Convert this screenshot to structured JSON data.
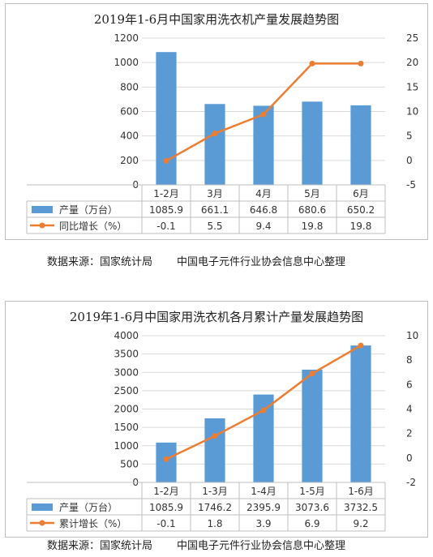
{
  "chart_data": [
    {
      "type": "bar",
      "title": "2019年1-6月中国家用洗衣机产量发展趋势图",
      "categories": [
        "1-2月",
        "3月",
        "4月",
        "5月",
        "6月"
      ],
      "series": [
        {
          "name": "产量（万台）",
          "type": "bar",
          "axis": "left",
          "values": [
            1085.9,
            661.1,
            646.8,
            680.6,
            650.2
          ],
          "labels": [
            "1085.9",
            "661.1",
            "646.8",
            "680.6",
            "650.2"
          ]
        },
        {
          "name": "同比增长（%）",
          "type": "line",
          "axis": "right",
          "values": [
            -0.1,
            5.5,
            9.4,
            19.8,
            19.8
          ],
          "labels": [
            "-0.1",
            "5.5",
            "9.4",
            "19.8",
            "19.8"
          ]
        }
      ],
      "ylim": [
        0,
        1200
      ],
      "yticks": [
        "0",
        "200",
        "400",
        "600",
        "800",
        "1000",
        "1200"
      ],
      "y2lim": [
        -5,
        25
      ],
      "y2ticks": [
        "-5",
        "0",
        "5",
        "10",
        "15",
        "20",
        "25"
      ],
      "grid": true,
      "legend": "data-table-bottom"
    },
    {
      "type": "bar",
      "title": "2019年1-6月中国家用洗衣机各月累计产量发展趋势图",
      "categories": [
        "1-2月",
        "1-3月",
        "1-4月",
        "1-5月",
        "1-6月"
      ],
      "series": [
        {
          "name": "产量（万台）",
          "type": "bar",
          "axis": "left",
          "values": [
            1085.9,
            1746.2,
            2395.9,
            3073.6,
            3732.5
          ],
          "labels": [
            "1085.9",
            "1746.2",
            "2395.9",
            "3073.6",
            "3732.5"
          ]
        },
        {
          "name": "累计增长（%）",
          "type": "line",
          "axis": "right",
          "values": [
            -0.1,
            1.8,
            3.9,
            6.9,
            9.2
          ],
          "labels": [
            "-0.1",
            "1.8",
            "3.9",
            "6.9",
            "9.2"
          ]
        }
      ],
      "ylim": [
        0,
        4000
      ],
      "yticks": [
        "0",
        "500",
        "1000",
        "1500",
        "2000",
        "2500",
        "3000",
        "3500",
        "4000"
      ],
      "y2lim": [
        -2,
        10
      ],
      "y2ticks": [
        "-2",
        "0",
        "2",
        "4",
        "6",
        "8",
        "10"
      ],
      "grid": true,
      "legend": "data-table-bottom"
    }
  ],
  "source_label": "数据来源：国家统计局",
  "source_org": "中国电子元件行业协会信息中心整理",
  "colors": {
    "bar": "#5b9bd5",
    "line": "#ed7d31",
    "grid": "#d9d9d9",
    "table": "#bfbfbf"
  }
}
